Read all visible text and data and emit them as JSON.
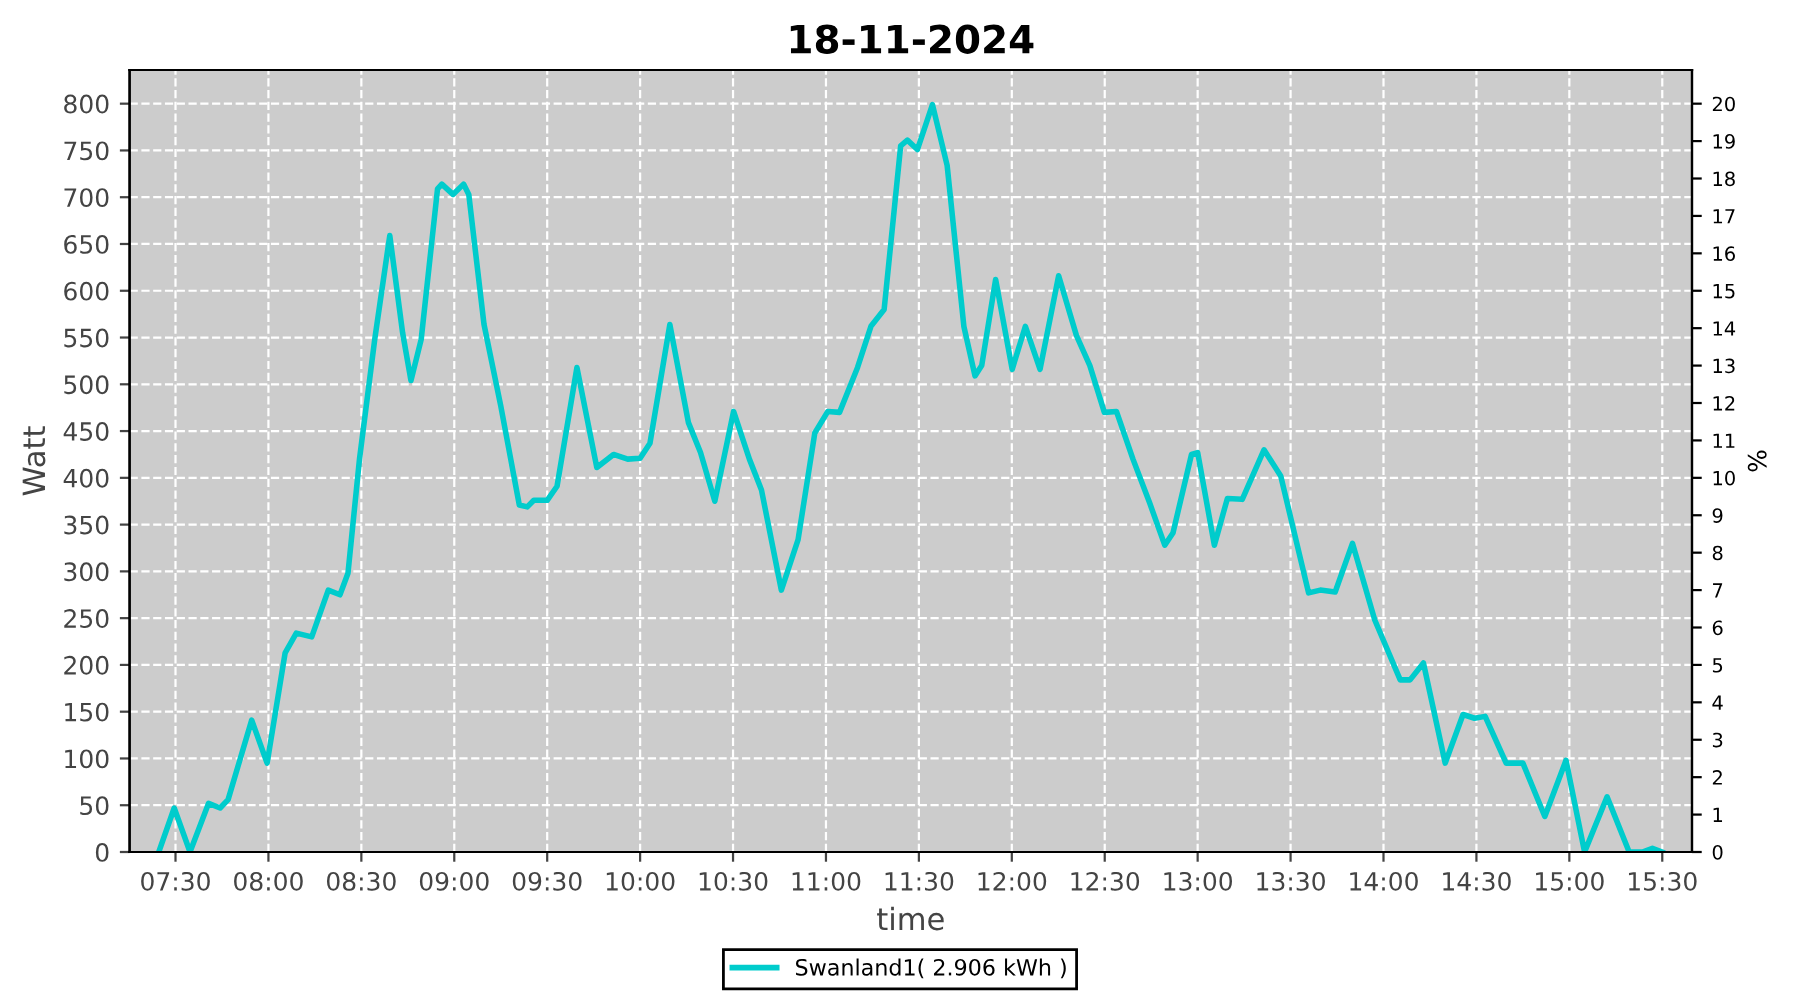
{
  "chart_data": {
    "type": "line",
    "title": "18-11-2024",
    "xlabel": "time",
    "ylabel": "Watt",
    "y2label": "%",
    "xlim": [
      7.253,
      15.66
    ],
    "ylim": [
      0,
      836
    ],
    "y2lim": [
      0,
      20.9
    ],
    "xticks": [
      {
        "value": 7.5,
        "label": "07:30"
      },
      {
        "value": 8,
        "label": "08:00"
      },
      {
        "value": 8.5,
        "label": "08:30"
      },
      {
        "value": 9,
        "label": "09:00"
      },
      {
        "value": 9.5,
        "label": "09:30"
      },
      {
        "value": 10,
        "label": "10:00"
      },
      {
        "value": 10.5,
        "label": "10:30"
      },
      {
        "value": 11,
        "label": "11:00"
      },
      {
        "value": 11.5,
        "label": "11:30"
      },
      {
        "value": 12,
        "label": "12:00"
      },
      {
        "value": 12.5,
        "label": "12:30"
      },
      {
        "value": 13,
        "label": "13:00"
      },
      {
        "value": 13.5,
        "label": "13:30"
      },
      {
        "value": 14,
        "label": "14:00"
      },
      {
        "value": 14.5,
        "label": "14:30"
      },
      {
        "value": 15,
        "label": "15:00"
      },
      {
        "value": 15.5,
        "label": "15:30"
      }
    ],
    "yticks": [
      0,
      50,
      100,
      150,
      200,
      250,
      300,
      350,
      400,
      450,
      500,
      550,
      600,
      650,
      700,
      750,
      800
    ],
    "y2ticks": [
      0,
      1,
      2,
      3,
      4,
      5,
      6,
      7,
      8,
      9,
      10,
      11,
      12,
      13,
      14,
      15,
      16,
      17,
      18,
      19,
      20
    ],
    "grid": true,
    "legend": "bottom",
    "marker": "none",
    "line_style": "solid",
    "series": [
      {
        "name": "Swanland1( 2.906 kWh )",
        "color": "#00cccc",
        "x": [
          7.41,
          7.493,
          7.578,
          7.678,
          7.74,
          7.783,
          7.91,
          7.993,
          8.09,
          8.15,
          8.233,
          8.322,
          8.385,
          8.428,
          8.49,
          8.572,
          8.653,
          8.722,
          8.767,
          8.822,
          8.91,
          8.933,
          8.993,
          9.05,
          9.078,
          9.16,
          9.25,
          9.35,
          9.393,
          9.428,
          9.5,
          9.553,
          9.66,
          9.767,
          9.857,
          9.933,
          10.0,
          10.053,
          10.16,
          10.26,
          10.325,
          10.402,
          10.503,
          10.588,
          10.653,
          10.76,
          10.85,
          10.94,
          11.01,
          11.073,
          11.17,
          11.242,
          11.313,
          11.402,
          11.438,
          11.492,
          11.573,
          11.652,
          11.742,
          11.802,
          11.838,
          11.913,
          12.002,
          12.073,
          12.152,
          12.252,
          12.348,
          12.42,
          12.498,
          12.563,
          12.652,
          12.742,
          12.823,
          12.867,
          12.967,
          13.0,
          13.09,
          13.16,
          13.24,
          13.357,
          13.447,
          13.597,
          13.66,
          13.74,
          13.833,
          13.953,
          14.09,
          14.143,
          14.215,
          14.332,
          14.428,
          14.49,
          14.547,
          14.66,
          14.75,
          14.868,
          14.982,
          15.082,
          15.203,
          15.322,
          15.393,
          15.447,
          15.5
        ],
        "values": [
          0,
          47,
          0,
          52,
          47,
          56,
          141,
          95,
          213,
          234,
          230,
          280,
          275,
          298,
          420,
          548,
          659,
          555,
          504,
          548,
          709,
          714,
          703,
          714,
          703,
          564,
          477,
          371,
          369,
          376,
          376,
          391,
          518,
          411,
          425,
          420,
          421,
          437,
          564,
          459,
          427,
          375,
          471,
          420,
          387,
          280,
          334,
          448,
          471,
          470,
          518,
          562,
          580,
          755,
          761,
          751,
          799,
          734,
          562,
          509,
          520,
          612,
          516,
          562,
          516,
          616,
          552,
          520,
          470,
          471,
          420,
          373,
          328,
          341,
          425,
          427,
          328,
          378,
          377,
          430,
          402,
          277,
          280,
          278,
          330,
          248,
          184,
          184,
          202,
          95,
          147,
          143,
          145,
          95,
          95,
          38,
          98,
          0,
          59,
          0,
          0,
          4,
          0
        ]
      }
    ]
  }
}
